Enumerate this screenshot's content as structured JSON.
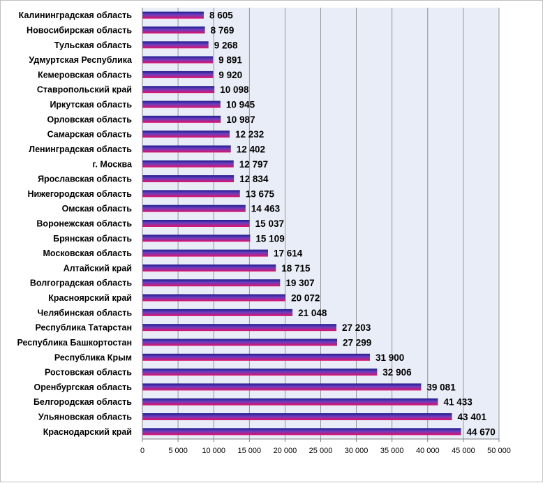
{
  "chart_data": {
    "type": "bar",
    "orientation": "horizontal",
    "title": "",
    "xlabel": "",
    "ylabel": "",
    "xlim": [
      0,
      50000
    ],
    "x_ticks": [
      0,
      5000,
      10000,
      15000,
      20000,
      25000,
      30000,
      35000,
      40000,
      45000,
      50000
    ],
    "x_tick_labels": [
      "0",
      "5 000",
      "10 000",
      "15 000",
      "20 000",
      "25 000",
      "30 000",
      "35 000",
      "40 000",
      "45 000",
      "50 000"
    ],
    "grid": "vertical",
    "legend": "none",
    "categories": [
      "Калининградская область",
      "Новосибирская область",
      "Тульская область",
      "Удмуртская Республика",
      "Кемеровская область",
      "Ставропольский край",
      "Иркутская область",
      "Орловская область",
      "Самарская область",
      "Ленинградская область",
      "г. Москва",
      "Ярославская область",
      "Нижегородская область",
      "Омская область",
      "Воронежская область",
      "Брянская область",
      "Московская область",
      "Алтайский край",
      "Волгоградская область",
      "Красноярский край",
      "Челябинская область",
      "Республика Татарстан",
      "Республика Башкортостан",
      "Республика Крым",
      "Ростовская область",
      "Оренбургская область",
      "Белгородская область",
      "Ульяновская область",
      "Краснодарский край"
    ],
    "values": [
      8605,
      8769,
      9268,
      9891,
      9920,
      10098,
      10945,
      10987,
      12232,
      12402,
      12797,
      12834,
      13675,
      14463,
      15037,
      15109,
      17614,
      18715,
      19307,
      20072,
      21048,
      27203,
      27299,
      31900,
      32906,
      39081,
      41433,
      43401,
      44670
    ],
    "value_labels": [
      "8 605",
      "8 769",
      "9 268",
      "9 891",
      "9 920",
      "10 098",
      "10 945",
      "10 987",
      "12 232",
      "12 402",
      "12 797",
      "12 834",
      "13 675",
      "14 463",
      "15 037",
      "15 109",
      "17 614",
      "18 715",
      "19 307",
      "20 072",
      "21 048",
      "27 203",
      "27 299",
      "31 900",
      "32 906",
      "39 081",
      "41 433",
      "43 401",
      "44 670"
    ],
    "colors": {
      "bar_top": "#1f1a8c",
      "bar_mid": "#6a3fc0",
      "bar_bottom": "#e0106a",
      "plot_background": "#e9edf7",
      "gridline": "#7f7f7f"
    }
  }
}
